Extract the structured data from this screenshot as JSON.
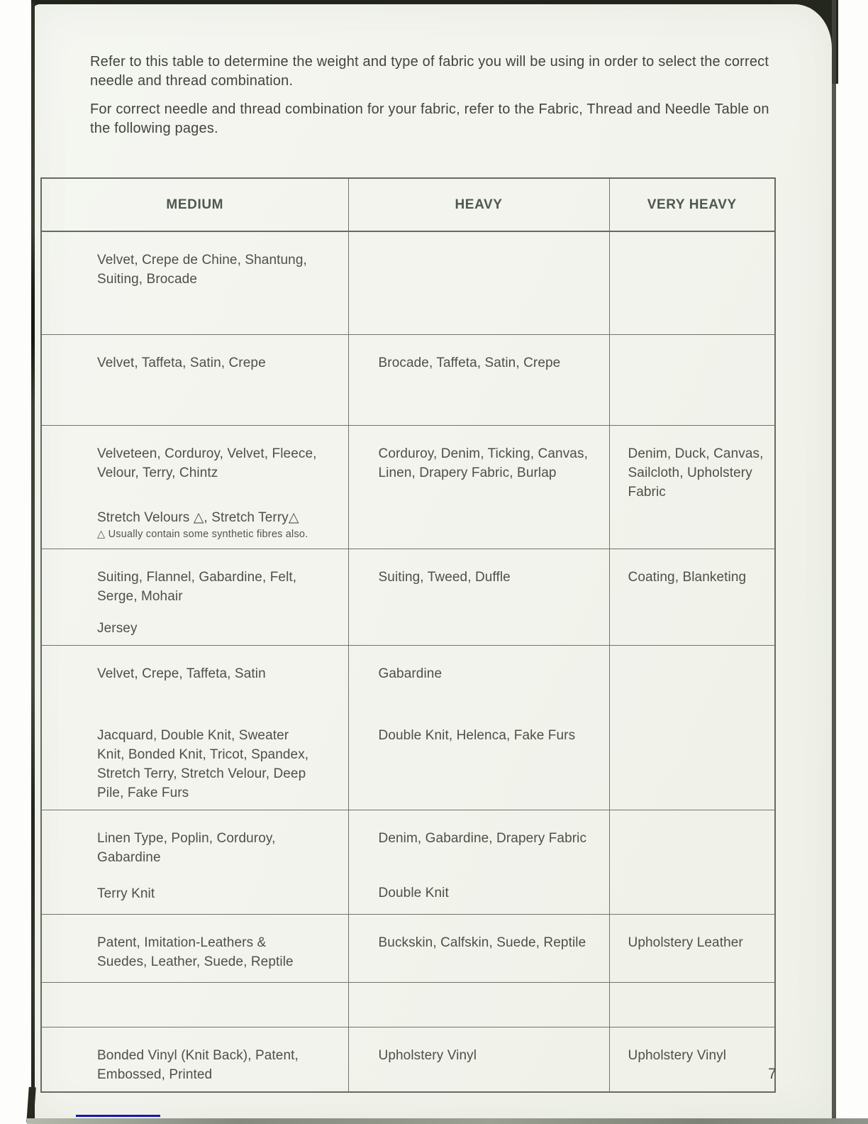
{
  "page": {
    "intro_1": "Refer to this table to determine the weight and type of fabric you will be using in order to select the correct needle and thread combination.",
    "intro_2": "For correct needle and thread combination for your fabric, refer to the Fabric, Thread and Needle Table on the following pages.",
    "page_number": "7"
  },
  "colors": {
    "paper": "#f3f4ee",
    "ink": "#4c5148",
    "header_ink": "#4e584c",
    "table_border": "#70756b",
    "scan_edge": "#23271d",
    "accent_line": "#1518ad"
  },
  "table": {
    "headers": [
      "MEDIUM",
      "HEAVY",
      "VERY HEAVY"
    ],
    "rows": [
      {
        "medium": [
          "Velvet, Crepe de Chine, Shantung, Suiting, Brocade"
        ],
        "heavy": [],
        "very_heavy": []
      },
      {
        "medium": [
          "Velvet, Taffeta, Satin, Crepe"
        ],
        "heavy": [
          "Brocade, Taffeta, Satin, Crepe"
        ],
        "very_heavy": []
      },
      {
        "medium": [
          "Velveteen, Corduroy, Velvet, Fleece, Velour, Terry, Chintz",
          "Stretch Velours △, Stretch Terry△"
        ],
        "footnote": "△ Usually contain some synthetic fibres also.",
        "heavy": [
          "Corduroy, Denim, Ticking, Canvas, Linen, Drapery Fabric, Burlap"
        ],
        "very_heavy": [
          "Denim, Duck, Canvas, Sailcloth, Upholstery Fabric"
        ]
      },
      {
        "medium": [
          "Suiting, Flannel, Gabardine, Felt, Serge, Mohair",
          "Jersey"
        ],
        "heavy": [
          "Suiting, Tweed, Duffle"
        ],
        "very_heavy": [
          "Coating, Blanketing"
        ]
      },
      {
        "medium": [
          "Velvet, Crepe, Taffeta, Satin",
          "Jacquard, Double Knit, Sweater Knit, Bonded Knit, Tricot, Spandex, Stretch Terry, Stretch Velour, Deep Pile, Fake Furs"
        ],
        "heavy": [
          "Gabardine",
          "Double Knit, Helenca, Fake Furs"
        ],
        "very_heavy": []
      },
      {
        "medium": [
          "Linen Type, Poplin, Corduroy, Gabardine",
          "Terry Knit"
        ],
        "heavy": [
          "Denim, Gabardine, Drapery Fabric",
          "Double Knit"
        ],
        "very_heavy": []
      },
      {
        "medium": [
          "Patent, Imitation-Leathers & Suedes, Leather, Suede, Reptile"
        ],
        "heavy": [
          "Buckskin, Calfskin, Suede, Reptile"
        ],
        "very_heavy": [
          "Upholstery Leather"
        ]
      },
      {
        "medium": [],
        "heavy": [],
        "very_heavy": []
      },
      {
        "medium": [
          "Bonded Vinyl (Knit Back), Patent, Embossed, Printed"
        ],
        "heavy": [
          "Upholstery Vinyl"
        ],
        "very_heavy": [
          "Upholstery Vinyl"
        ]
      }
    ]
  }
}
